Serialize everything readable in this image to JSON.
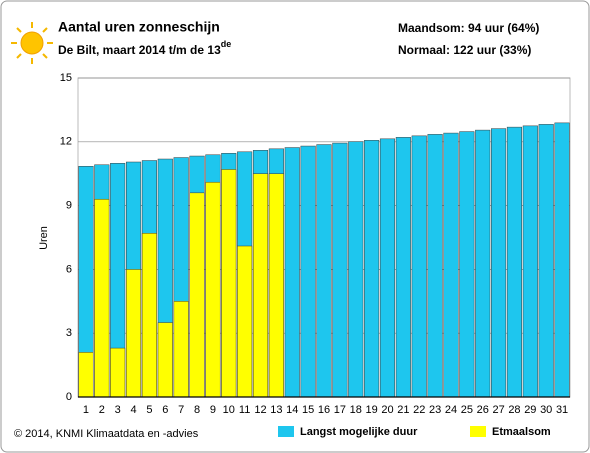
{
  "chart_data": {
    "type": "bar",
    "title": "Aantal uren zonneschijn",
    "subtitle": [
      "De Bilt, maart 2014 t/m de 13",
      "de"
    ],
    "summary": [
      "Maandsom: 94 uur (64%)",
      "Normaal: 122 uur (33%)"
    ],
    "footer": "© 2014, KNMI Klimaatdata en -advies",
    "ylabel": "Uren",
    "categories": [
      "1",
      "2",
      "3",
      "4",
      "5",
      "6",
      "7",
      "8",
      "9",
      "10",
      "11",
      "12",
      "13",
      "14",
      "15",
      "16",
      "17",
      "18",
      "19",
      "20",
      "21",
      "22",
      "23",
      "24",
      "25",
      "26",
      "27",
      "28",
      "29",
      "30",
      "31"
    ],
    "series": [
      {
        "name": "Langst mogelijke duur",
        "color": "#1ec6ee",
        "values": [
          10.85,
          10.92,
          10.99,
          11.05,
          11.12,
          11.19,
          11.26,
          11.33,
          11.39,
          11.46,
          11.53,
          11.6,
          11.67,
          11.73,
          11.8,
          11.87,
          11.94,
          12.01,
          12.07,
          12.14,
          12.21,
          12.28,
          12.35,
          12.41,
          12.48,
          12.55,
          12.62,
          12.69,
          12.75,
          12.82,
          12.89
        ]
      },
      {
        "name": "Etmaalsom",
        "color": "#ffff00",
        "values": [
          2.1,
          9.3,
          2.3,
          6.0,
          7.7,
          3.5,
          4.5,
          9.6,
          10.1,
          10.7,
          7.1,
          10.5,
          10.5,
          null,
          null,
          null,
          null,
          null,
          null,
          null,
          null,
          null,
          null,
          null,
          null,
          null,
          null,
          null,
          null,
          null,
          null
        ]
      }
    ],
    "ylim": [
      0,
      15
    ],
    "yticks": [
      0,
      3,
      6,
      9,
      12,
      15
    ],
    "grid": true
  }
}
